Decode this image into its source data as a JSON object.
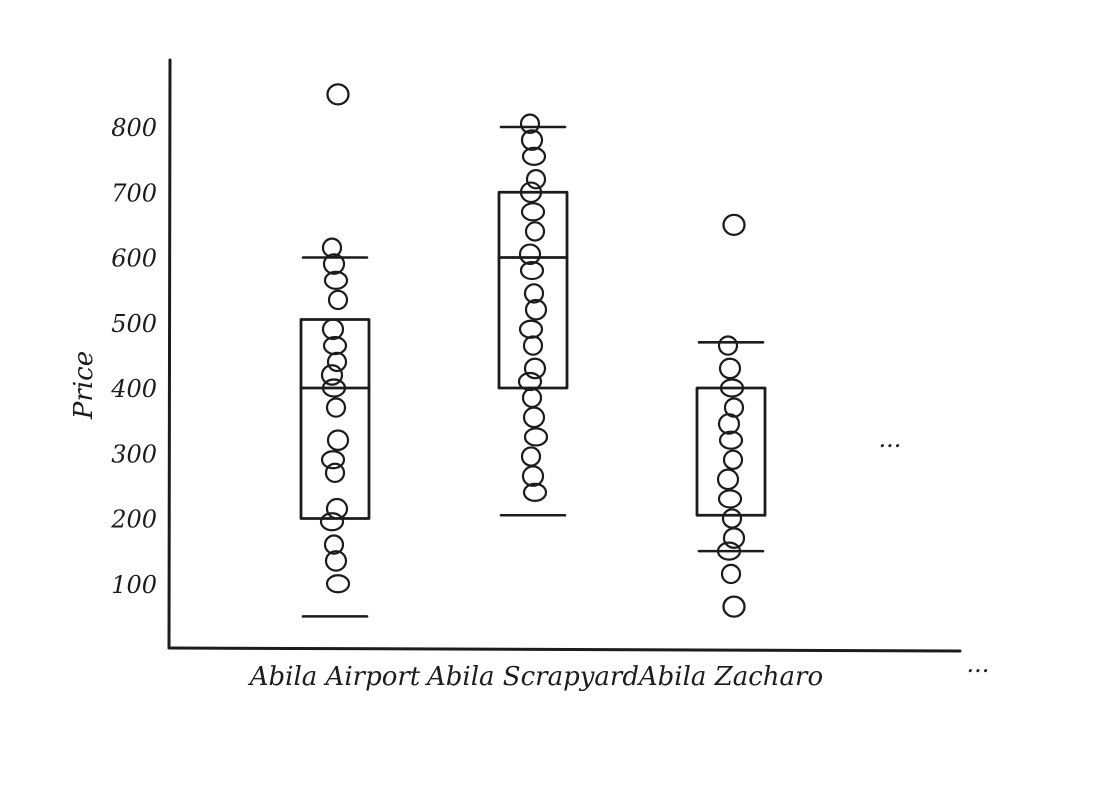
{
  "chart_data": {
    "type": "box",
    "ylabel": "Price",
    "xlabel": "",
    "yticks": [
      100,
      200,
      300,
      400,
      500,
      600,
      700,
      800
    ],
    "categories": [
      "Abila Airport",
      "Abila Scrapyard",
      "Abila Zacharo"
    ],
    "continuation_label": "...",
    "grid": false,
    "style": "hand-drawn sketch",
    "colors": {
      "ink": "#1c1c1c",
      "background": "#ffffff"
    },
    "boxes": [
      {
        "category": "Abila Airport",
        "whisker_low": 50,
        "q1": 200,
        "median": 400,
        "q3": 505,
        "whisker_high": 600,
        "points": [
          615,
          590,
          565,
          535,
          490,
          465,
          440,
          420,
          400,
          370,
          320,
          290,
          270,
          215,
          195,
          160,
          135,
          100
        ],
        "outliers": [
          850
        ]
      },
      {
        "category": "Abila Scrapyard",
        "whisker_low": 205,
        "q1": 400,
        "median": 600,
        "q3": 700,
        "whisker_high": 800,
        "points": [
          805,
          780,
          755,
          720,
          700,
          670,
          640,
          605,
          580,
          545,
          520,
          490,
          465,
          430,
          410,
          385,
          355,
          325,
          295,
          265,
          240
        ],
        "outliers": []
      },
      {
        "category": "Abila Zacharo",
        "whisker_low": 150,
        "q1": 205,
        "median": null,
        "q3": 400,
        "whisker_high": 470,
        "points": [
          465,
          430,
          400,
          370,
          345,
          320,
          290,
          260,
          230,
          200,
          170,
          150,
          115
        ],
        "outliers": [
          650,
          65
        ]
      }
    ]
  }
}
